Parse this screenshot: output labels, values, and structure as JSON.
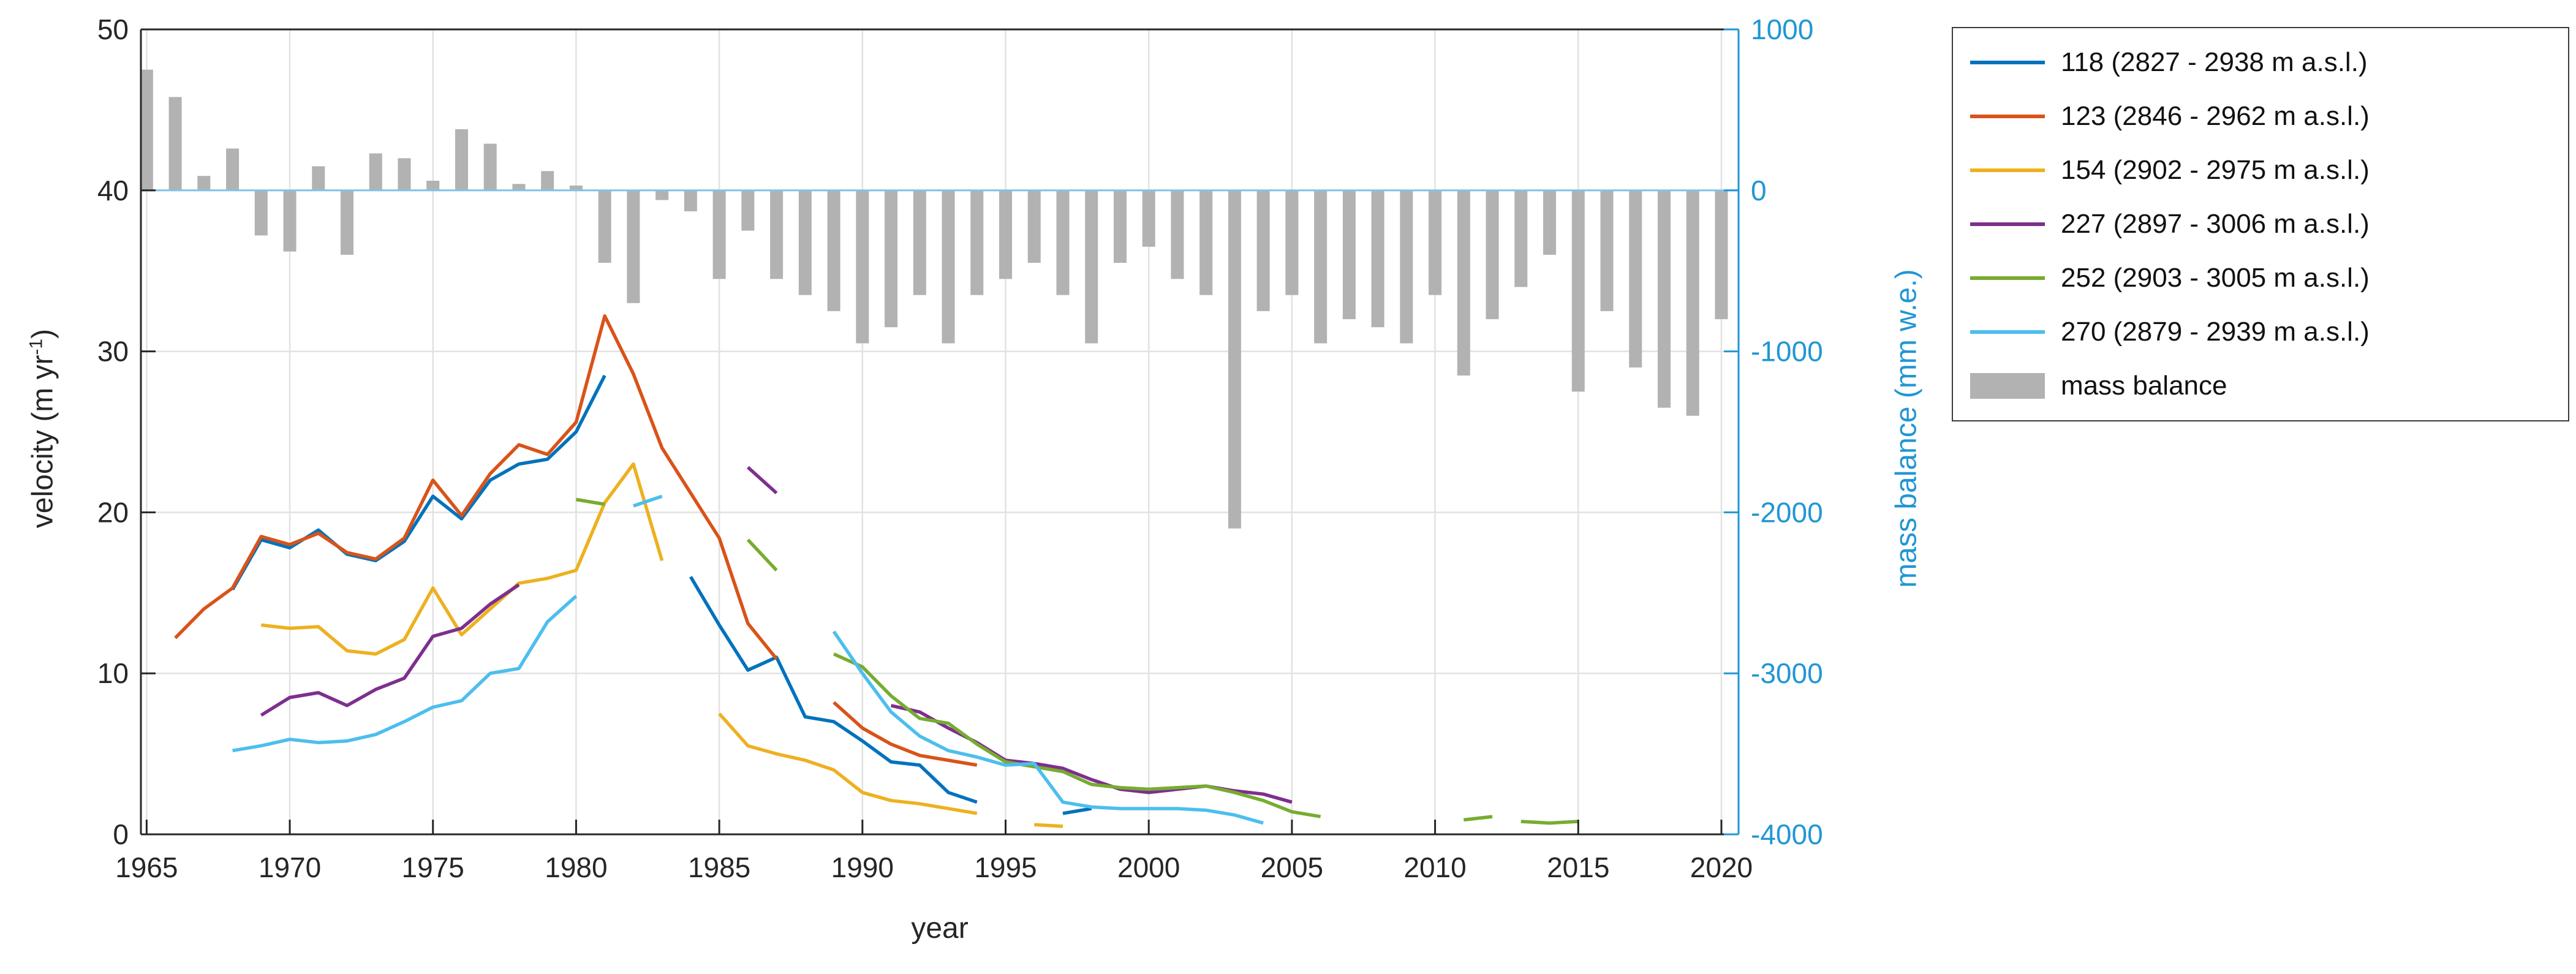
{
  "axes_style": {
    "axis_color": "#262626",
    "right_axis_color": "#2196d4",
    "grid_color": "#e2e2e2",
    "zero_line_color": "#7fc4e8",
    "tick_label_color": "#262626",
    "background": "#ffffff"
  },
  "chart_data": {
    "type": "line+bar",
    "title": "",
    "xlabel": "year",
    "ylabel_left": "velocity (m yr⁻¹)",
    "ylabel_left_parts": {
      "pre": "velocity (m yr",
      "sup": "-1",
      "post": ")"
    },
    "ylabel_right": "mass balance (mm w.e.)",
    "x_range": [
      1964.8,
      2020.6
    ],
    "y_left_range": [
      0,
      50
    ],
    "y_right_range": [
      -4000,
      1000
    ],
    "x_ticks": [
      1965,
      1970,
      1975,
      1980,
      1985,
      1990,
      1995,
      2000,
      2005,
      2010,
      2015,
      2020
    ],
    "y_left_ticks": [
      0,
      10,
      20,
      30,
      40,
      50
    ],
    "y_right_ticks": [
      1000,
      0,
      -1000,
      -2000,
      -3000,
      -4000
    ],
    "grid": true,
    "legend_position": "outside-top-right",
    "series": [
      {
        "id": "118",
        "label": "118 (2827 - 2938 m a.s.l.)",
        "color": "#0072BD",
        "axis": "left",
        "segments": [
          [
            [
              1968,
              15.2
            ],
            [
              1969,
              18.3
            ],
            [
              1970,
              17.8
            ],
            [
              1971,
              18.9
            ],
            [
              1972,
              17.4
            ],
            [
              1973,
              17.0
            ],
            [
              1974,
              18.2
            ],
            [
              1975,
              21.0
            ],
            [
              1976,
              19.6
            ],
            [
              1977,
              22.0
            ],
            [
              1978,
              23.0
            ],
            [
              1979,
              23.3
            ],
            [
              1980,
              25.0
            ],
            [
              1981,
              28.5
            ]
          ],
          [
            [
              1984,
              16.0
            ],
            [
              1985,
              13.0
            ],
            [
              1986,
              10.2
            ],
            [
              1987,
              11.0
            ],
            [
              1988,
              7.3
            ],
            [
              1989,
              7.0
            ],
            [
              1990,
              5.8
            ],
            [
              1991,
              4.5
            ],
            [
              1992,
              4.3
            ],
            [
              1993,
              2.6
            ],
            [
              1994,
              2.0
            ]
          ],
          [
            [
              1997,
              1.3
            ],
            [
              1998,
              1.6
            ]
          ]
        ]
      },
      {
        "id": "123",
        "label": "123 (2846 - 2962 m a.s.l.)",
        "color": "#D95319",
        "axis": "left",
        "segments": [
          [
            [
              1966,
              12.2
            ],
            [
              1967,
              14.0
            ],
            [
              1968,
              15.3
            ],
            [
              1969,
              18.5
            ],
            [
              1970,
              18.0
            ],
            [
              1971,
              18.7
            ],
            [
              1972,
              17.5
            ],
            [
              1973,
              17.1
            ],
            [
              1974,
              18.4
            ],
            [
              1975,
              22.0
            ],
            [
              1976,
              19.8
            ],
            [
              1977,
              22.4
            ],
            [
              1978,
              24.2
            ],
            [
              1979,
              23.6
            ],
            [
              1980,
              25.6
            ],
            [
              1981,
              32.2
            ],
            [
              1982,
              28.6
            ],
            [
              1983,
              24.0
            ],
            [
              1984,
              21.2
            ],
            [
              1985,
              18.4
            ],
            [
              1986,
              13.1
            ],
            [
              1987,
              10.9
            ]
          ],
          [
            [
              1989,
              8.2
            ],
            [
              1990,
              6.6
            ],
            [
              1991,
              5.6
            ],
            [
              1992,
              4.9
            ],
            [
              1993,
              4.6
            ],
            [
              1994,
              4.3
            ]
          ]
        ]
      },
      {
        "id": "154",
        "label": "154 (2902 - 2975 m a.s.l.)",
        "color": "#EDB120",
        "axis": "left",
        "segments": [
          [
            [
              1969,
              13.0
            ],
            [
              1970,
              12.8
            ],
            [
              1971,
              12.9
            ],
            [
              1972,
              11.4
            ],
            [
              1973,
              11.2
            ],
            [
              1974,
              12.1
            ],
            [
              1975,
              15.3
            ],
            [
              1976,
              12.4
            ],
            [
              1977,
              14.0
            ],
            [
              1978,
              15.6
            ],
            [
              1979,
              15.9
            ],
            [
              1980,
              16.4
            ],
            [
              1981,
              20.6
            ],
            [
              1982,
              23.0
            ],
            [
              1983,
              17.0
            ]
          ],
          [
            [
              1985,
              7.5
            ],
            [
              1986,
              5.5
            ],
            [
              1987,
              5.0
            ],
            [
              1988,
              4.6
            ],
            [
              1989,
              4.0
            ],
            [
              1990,
              2.6
            ],
            [
              1991,
              2.1
            ],
            [
              1992,
              1.9
            ],
            [
              1993,
              1.6
            ],
            [
              1994,
              1.3
            ]
          ],
          [
            [
              1996,
              0.6
            ],
            [
              1997,
              0.5
            ]
          ]
        ]
      },
      {
        "id": "227",
        "label": "227 (2897 - 3006 m a.s.l.)",
        "color": "#7E2F8E",
        "axis": "left",
        "segments": [
          [
            [
              1969,
              7.4
            ],
            [
              1970,
              8.5
            ],
            [
              1971,
              8.8
            ],
            [
              1972,
              8.0
            ],
            [
              1973,
              9.0
            ],
            [
              1974,
              9.7
            ],
            [
              1975,
              12.3
            ],
            [
              1976,
              12.8
            ],
            [
              1977,
              14.3
            ],
            [
              1978,
              15.5
            ]
          ],
          [
            [
              1986,
              22.8
            ],
            [
              1987,
              21.2
            ]
          ],
          [
            [
              1991,
              8.0
            ],
            [
              1992,
              7.6
            ],
            [
              1993,
              6.6
            ],
            [
              1994,
              5.7
            ],
            [
              1995,
              4.6
            ],
            [
              1996,
              4.4
            ],
            [
              1997,
              4.1
            ],
            [
              1998,
              3.4
            ],
            [
              1999,
              2.8
            ],
            [
              2000,
              2.6
            ],
            [
              2001,
              2.8
            ],
            [
              2002,
              3.0
            ],
            [
              2003,
              2.7
            ],
            [
              2004,
              2.5
            ],
            [
              2005,
              2.0
            ]
          ]
        ]
      },
      {
        "id": "252",
        "label": "252 (2903 - 3005 m a.s.l.)",
        "color": "#77AC30",
        "axis": "left",
        "segments": [
          [
            [
              1980,
              20.8
            ],
            [
              1981,
              20.5
            ]
          ],
          [
            [
              1986,
              18.3
            ],
            [
              1987,
              16.4
            ]
          ],
          [
            [
              1989,
              11.2
            ],
            [
              1990,
              10.4
            ],
            [
              1991,
              8.6
            ],
            [
              1992,
              7.2
            ],
            [
              1993,
              6.9
            ],
            [
              1994,
              5.6
            ],
            [
              1995,
              4.5
            ],
            [
              1996,
              4.2
            ],
            [
              1997,
              3.9
            ],
            [
              1998,
              3.1
            ],
            [
              1999,
              2.9
            ],
            [
              2000,
              2.8
            ],
            [
              2001,
              2.9
            ],
            [
              2002,
              3.0
            ],
            [
              2003,
              2.6
            ],
            [
              2004,
              2.1
            ],
            [
              2005,
              1.4
            ],
            [
              2006,
              1.1
            ]
          ],
          [
            [
              2011,
              0.9
            ],
            [
              2012,
              1.1
            ]
          ],
          [
            [
              2013,
              0.8
            ],
            [
              2014,
              0.7
            ],
            [
              2015,
              0.8
            ]
          ]
        ]
      },
      {
        "id": "270",
        "label": "270 (2879 - 2939 m a.s.l.)",
        "color": "#4DBEEE",
        "axis": "left",
        "segments": [
          [
            [
              1968,
              5.2
            ],
            [
              1969,
              5.5
            ],
            [
              1970,
              5.9
            ],
            [
              1971,
              5.7
            ],
            [
              1972,
              5.8
            ],
            [
              1973,
              6.2
            ],
            [
              1974,
              7.0
            ],
            [
              1975,
              7.9
            ],
            [
              1976,
              8.3
            ],
            [
              1977,
              10.0
            ],
            [
              1978,
              10.3
            ],
            [
              1979,
              13.2
            ],
            [
              1980,
              14.8
            ]
          ],
          [
            [
              1982,
              20.4
            ],
            [
              1983,
              21.0
            ]
          ],
          [
            [
              1989,
              12.6
            ],
            [
              1990,
              10.0
            ],
            [
              1991,
              7.6
            ],
            [
              1992,
              6.1
            ],
            [
              1993,
              5.2
            ],
            [
              1994,
              4.8
            ],
            [
              1995,
              4.3
            ],
            [
              1996,
              4.4
            ],
            [
              1997,
              2.0
            ],
            [
              1998,
              1.7
            ],
            [
              1999,
              1.6
            ],
            [
              2000,
              1.6
            ],
            [
              2001,
              1.6
            ],
            [
              2002,
              1.5
            ],
            [
              2003,
              1.2
            ],
            [
              2004,
              0.7
            ]
          ]
        ]
      }
    ],
    "bars": {
      "id": "mass-balance",
      "label": "mass balance",
      "color": "#b2b2b2",
      "axis": "right",
      "bar_width_years": 0.45,
      "years": [
        1965,
        1966,
        1967,
        1968,
        1969,
        1970,
        1971,
        1972,
        1973,
        1974,
        1975,
        1976,
        1977,
        1978,
        1979,
        1980,
        1981,
        1982,
        1983,
        1984,
        1985,
        1986,
        1987,
        1988,
        1989,
        1990,
        1991,
        1992,
        1993,
        1994,
        1995,
        1996,
        1997,
        1998,
        1999,
        2000,
        2001,
        2002,
        2003,
        2004,
        2005,
        2006,
        2007,
        2008,
        2009,
        2010,
        2011,
        2012,
        2013,
        2014,
        2015,
        2016,
        2017,
        2018,
        2019,
        2020
      ],
      "values": [
        750,
        580,
        90,
        260,
        -280,
        -380,
        150,
        -400,
        230,
        200,
        60,
        380,
        290,
        40,
        120,
        30,
        -450,
        -700,
        -60,
        -130,
        -550,
        -250,
        -550,
        -650,
        -750,
        -950,
        -850,
        -650,
        -950,
        -650,
        -550,
        -450,
        -650,
        -950,
        -450,
        -350,
        -550,
        -650,
        -2100,
        -750,
        -650,
        -950,
        -800,
        -850,
        -950,
        -650,
        -1150,
        -800,
        -600,
        -400,
        -1250,
        -750,
        -1100,
        -1350,
        -1400,
        -800
      ]
    }
  }
}
